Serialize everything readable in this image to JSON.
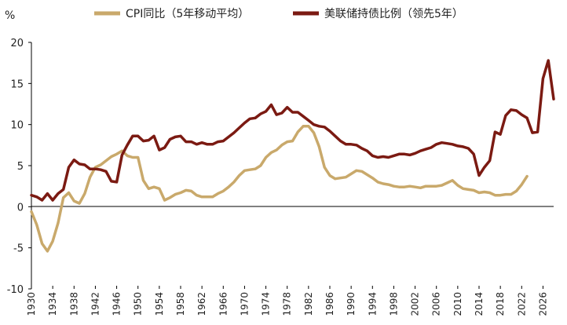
{
  "chart_data": {
    "type": "line",
    "ylabel": "%",
    "ylim": [
      -10,
      20
    ],
    "yticks": [
      -10,
      -5,
      0,
      5,
      10,
      15,
      20
    ],
    "xlim": [
      1930,
      2028
    ],
    "xticks": [
      1930,
      1934,
      1938,
      1942,
      1946,
      1950,
      1954,
      1958,
      1962,
      1966,
      1970,
      1974,
      1978,
      1982,
      1986,
      1990,
      1994,
      1998,
      2002,
      2006,
      2010,
      2014,
      2018,
      2022,
      2026
    ],
    "grid": false,
    "legend_position": "top",
    "series": [
      {
        "name": "CPI同比（5年移动平均）",
        "color": "#C9A96B",
        "x": [
          1930,
          1931,
          1932,
          1933,
          1934,
          1935,
          1936,
          1937,
          1938,
          1939,
          1940,
          1941,
          1942,
          1943,
          1944,
          1945,
          1946,
          1947,
          1948,
          1949,
          1950,
          1951,
          1952,
          1953,
          1954,
          1955,
          1956,
          1957,
          1958,
          1959,
          1960,
          1961,
          1962,
          1963,
          1964,
          1965,
          1966,
          1967,
          1968,
          1969,
          1970,
          1971,
          1972,
          1973,
          1974,
          1975,
          1976,
          1977,
          1978,
          1979,
          1980,
          1981,
          1982,
          1983,
          1984,
          1985,
          1986,
          1987,
          1988,
          1989,
          1990,
          1991,
          1992,
          1993,
          1994,
          1995,
          1996,
          1997,
          1998,
          1999,
          2000,
          2001,
          2002,
          2003,
          2004,
          2005,
          2006,
          2007,
          2008,
          2009,
          2010,
          2011,
          2012,
          2013,
          2014,
          2015,
          2016,
          2017,
          2018,
          2019,
          2020,
          2021,
          2022,
          2023
        ],
        "values": [
          -0.6,
          -2.2,
          -4.5,
          -5.4,
          -4.2,
          -2.0,
          1.1,
          1.7,
          0.7,
          0.4,
          1.6,
          3.6,
          4.8,
          5.1,
          5.6,
          6.1,
          6.4,
          6.8,
          6.2,
          6.0,
          6.0,
          3.2,
          2.2,
          2.4,
          2.2,
          0.8,
          1.1,
          1.5,
          1.7,
          2.0,
          1.9,
          1.4,
          1.2,
          1.2,
          1.2,
          1.6,
          1.9,
          2.4,
          3.0,
          3.8,
          4.4,
          4.5,
          4.6,
          5.0,
          6.0,
          6.6,
          6.9,
          7.5,
          7.9,
          8.0,
          9.1,
          9.8,
          9.8,
          9.0,
          7.3,
          4.8,
          3.8,
          3.4,
          3.5,
          3.6,
          4.0,
          4.4,
          4.3,
          3.9,
          3.5,
          3.0,
          2.8,
          2.7,
          2.5,
          2.4,
          2.4,
          2.5,
          2.4,
          2.3,
          2.5,
          2.5,
          2.5,
          2.6,
          2.9,
          3.2,
          2.6,
          2.2,
          2.1,
          2.0,
          1.7,
          1.8,
          1.7,
          1.4,
          1.4,
          1.5,
          1.5,
          1.9,
          2.7,
          3.7
        ]
      },
      {
        "name": "美联储持债比例（领先5年）",
        "color": "#7B1A12",
        "x": [
          1930,
          1931,
          1932,
          1933,
          1934,
          1935,
          1936,
          1937,
          1938,
          1939,
          1940,
          1941,
          1942,
          1943,
          1944,
          1945,
          1946,
          1947,
          1948,
          1949,
          1950,
          1951,
          1952,
          1953,
          1954,
          1955,
          1956,
          1957,
          1958,
          1959,
          1960,
          1961,
          1962,
          1963,
          1964,
          1965,
          1966,
          1967,
          1968,
          1969,
          1970,
          1971,
          1972,
          1973,
          1974,
          1975,
          1976,
          1977,
          1978,
          1979,
          1980,
          1981,
          1982,
          1983,
          1984,
          1985,
          1986,
          1987,
          1988,
          1989,
          1990,
          1991,
          1992,
          1993,
          1994,
          1995,
          1996,
          1997,
          1998,
          1999,
          2000,
          2001,
          2002,
          2003,
          2004,
          2005,
          2006,
          2007,
          2008,
          2009,
          2010,
          2011,
          2012,
          2013,
          2014,
          2015,
          2016,
          2017,
          2018,
          2019,
          2020,
          2021,
          2022,
          2023,
          2024,
          2025,
          2026,
          2027,
          2028
        ],
        "values": [
          1.4,
          1.2,
          0.8,
          1.6,
          0.8,
          1.6,
          2.1,
          4.8,
          5.7,
          5.2,
          5.1,
          4.6,
          4.6,
          4.5,
          4.3,
          3.1,
          3.0,
          6.3,
          7.5,
          8.6,
          8.6,
          8.0,
          8.1,
          8.6,
          6.9,
          7.2,
          8.2,
          8.5,
          8.6,
          7.9,
          7.9,
          7.6,
          7.8,
          7.6,
          7.6,
          7.9,
          8.0,
          8.5,
          9.0,
          9.6,
          10.2,
          10.7,
          10.8,
          11.3,
          11.6,
          12.4,
          11.2,
          11.4,
          12.1,
          11.5,
          11.5,
          11.0,
          10.5,
          10.0,
          9.8,
          9.7,
          9.2,
          8.6,
          8.0,
          7.6,
          7.6,
          7.5,
          7.1,
          6.8,
          6.2,
          6.0,
          6.1,
          6.0,
          6.2,
          6.4,
          6.4,
          6.3,
          6.5,
          6.8,
          7.0,
          7.2,
          7.6,
          7.8,
          7.7,
          7.6,
          7.4,
          7.3,
          7.1,
          6.4,
          3.8,
          4.8,
          5.6,
          9.1,
          8.8,
          11.1,
          11.8,
          11.7,
          11.2,
          10.8,
          9.0,
          9.1,
          15.6,
          17.8,
          13.1
        ]
      }
    ]
  }
}
